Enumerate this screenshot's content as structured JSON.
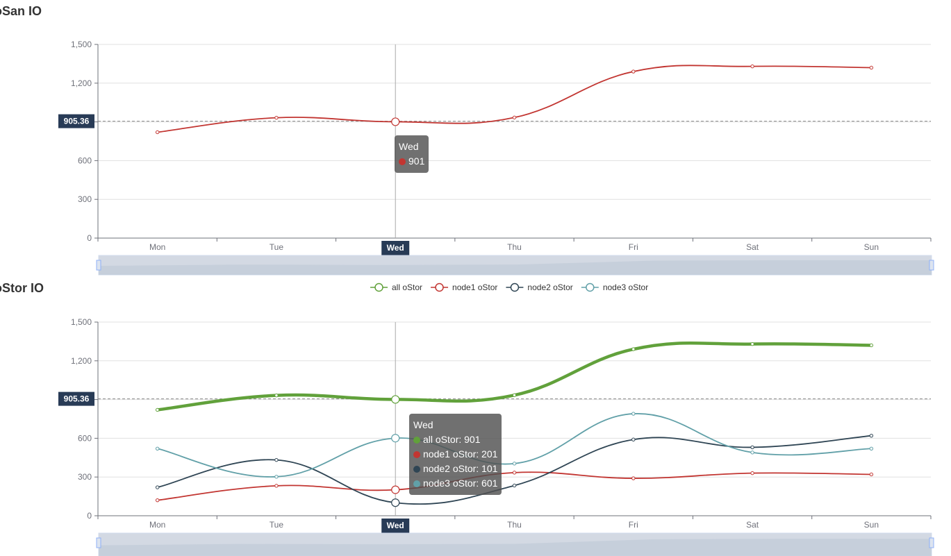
{
  "section1_title": "oSan IO",
  "section2_title": "oStor IO",
  "pointer": {
    "category": "Wed",
    "y_value_label": "905.36"
  },
  "tooltip1": {
    "title": "Wed",
    "rows": [
      {
        "text": "901",
        "color": "#c23531"
      }
    ]
  },
  "tooltip2": {
    "title": "Wed",
    "rows": [
      {
        "text": "all oStor: 901",
        "color": "#61a13b"
      },
      {
        "text": "node1 oStor: 201",
        "color": "#c23531"
      },
      {
        "text": "node2 oStor: 101",
        "color": "#2f4554"
      },
      {
        "text": "node3 oStor: 601",
        "color": "#61a0a8"
      }
    ]
  },
  "chart_data": [
    {
      "type": "line",
      "title": "oSan IO",
      "categories": [
        "Mon",
        "Tue",
        "Wed",
        "Thu",
        "Fri",
        "Sat",
        "Sun"
      ],
      "ylim": [
        0,
        1500
      ],
      "yticks": [
        "0",
        "300",
        "600",
        "900",
        "1,200",
        "1,500"
      ],
      "ytick_values": [
        0,
        300,
        600,
        900,
        1200,
        1500
      ],
      "grid": true,
      "series": [
        {
          "values": [
            820,
            932,
            901,
            934,
            1290,
            1330,
            1320
          ],
          "color": "#c23531"
        }
      ]
    },
    {
      "type": "line",
      "title": "oStor IO",
      "categories": [
        "Mon",
        "Tue",
        "Wed",
        "Thu",
        "Fri",
        "Sat",
        "Sun"
      ],
      "ylim": [
        0,
        1500
      ],
      "yticks": [
        "0",
        "300",
        "600",
        "900",
        "1,200",
        "1,500"
      ],
      "ytick_values": [
        0,
        300,
        600,
        900,
        1200,
        1500
      ],
      "grid": true,
      "legend_position": "top-center",
      "series": [
        {
          "name": "all oStor",
          "values": [
            820,
            932,
            901,
            934,
            1290,
            1330,
            1320
          ],
          "color": "#61a13b",
          "bold": true
        },
        {
          "name": "node1 oStor",
          "values": [
            120,
            232,
            201,
            334,
            290,
            330,
            320
          ],
          "color": "#c23531"
        },
        {
          "name": "node2 oStor",
          "values": [
            220,
            432,
            101,
            234,
            590,
            530,
            620
          ],
          "color": "#2f4554"
        },
        {
          "name": "node3 oStor",
          "values": [
            520,
            302,
            601,
            404,
            790,
            490,
            520
          ],
          "color": "#61a0a8"
        }
      ]
    }
  ]
}
